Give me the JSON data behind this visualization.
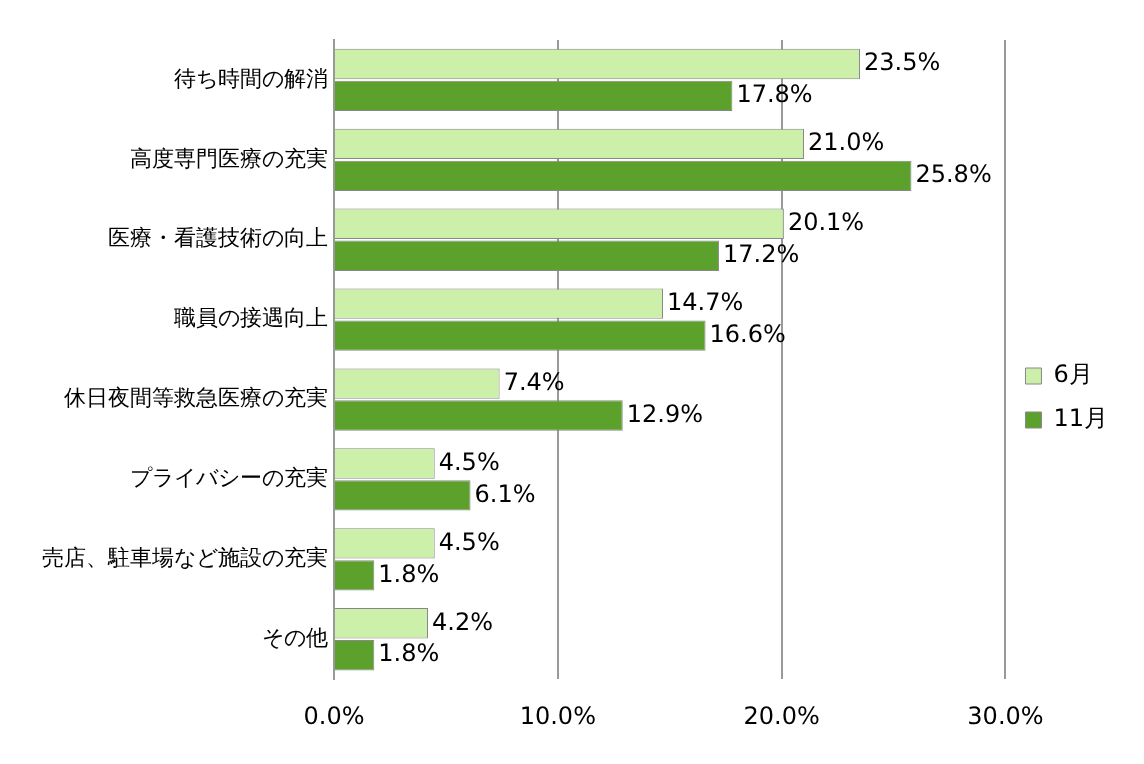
{
  "chart_data": {
    "type": "bar",
    "orientation": "horizontal",
    "categories": [
      "待ち時間の解消",
      "高度専門医療の充実",
      "医療・看護技術の向上",
      "職員の接遇向上",
      "休日夜間等救急医療の充実",
      "プライバシーの充実",
      "売店、駐車場など施設の充実",
      "その他"
    ],
    "series": [
      {
        "name": "6月",
        "color": "#ccf0aa",
        "values": [
          23.5,
          21.0,
          20.1,
          14.7,
          7.4,
          4.5,
          4.5,
          4.2
        ],
        "value_labels": [
          "23.5%",
          "21.0%",
          "20.1%",
          "14.7%",
          "7.4%",
          "4.5%",
          "4.5%",
          "4.2%"
        ]
      },
      {
        "name": "11月",
        "color": "#5ba12c",
        "values": [
          17.8,
          25.8,
          17.2,
          16.6,
          12.9,
          6.1,
          1.8,
          1.8
        ],
        "value_labels": [
          "17.8%",
          "25.8%",
          "17.2%",
          "16.6%",
          "12.9%",
          "6.1%",
          "1.8%",
          "1.8%"
        ]
      }
    ],
    "xlim": [
      0,
      30
    ],
    "xticks": [
      {
        "value": 0,
        "label": "0.0%"
      },
      {
        "value": 10,
        "label": "10.0%"
      },
      {
        "value": 20,
        "label": "20.0%"
      },
      {
        "value": 30,
        "label": "30.0%"
      }
    ],
    "grid": "x",
    "legend": "right"
  }
}
